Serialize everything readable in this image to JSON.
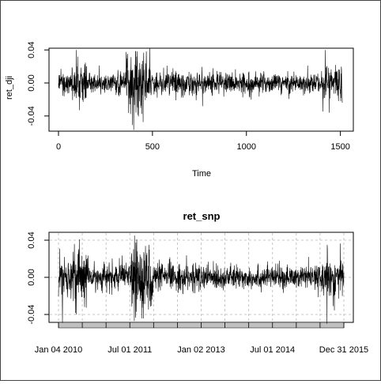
{
  "chart_data": [
    {
      "type": "line",
      "title": "",
      "xlabel": "Time",
      "ylabel": "ret_dji",
      "xlim": [
        0,
        1510
      ],
      "ylim": [
        -0.06,
        0.045
      ],
      "x_ticks": [
        0,
        500,
        1000,
        1500
      ],
      "x_tick_labels": [
        "0",
        "500",
        "1000",
        "1500"
      ],
      "y_ticks": [
        -0.04,
        0.0,
        0.04
      ],
      "y_tick_labels": [
        "-0.04",
        "0.00",
        "0.04"
      ],
      "grid": false,
      "series": [
        {
          "color": "#000000",
          "n_points": 1510,
          "volatility_profile": [
            {
              "x_start": 0,
              "x_end": 70,
              "sd": 0.006
            },
            {
              "x_start": 70,
              "x_end": 150,
              "sd": 0.014
            },
            {
              "x_start": 150,
              "x_end": 360,
              "sd": 0.007
            },
            {
              "x_start": 360,
              "x_end": 470,
              "sd": 0.018
            },
            {
              "x_start": 470,
              "x_end": 900,
              "sd": 0.007
            },
            {
              "x_start": 900,
              "x_end": 1400,
              "sd": 0.006
            },
            {
              "x_start": 1400,
              "x_end": 1510,
              "sd": 0.011
            }
          ],
          "notable_values": [
            {
              "x": 95,
              "y": 0.04
            },
            {
              "x": 112,
              "y": -0.033
            },
            {
              "x": 400,
              "y": -0.057
            },
            {
              "x": 410,
              "y": 0.038
            },
            {
              "x": 485,
              "y": 0.042
            },
            {
              "x": 1420,
              "y": 0.04
            },
            {
              "x": 1440,
              "y": -0.036
            }
          ]
        }
      ]
    },
    {
      "type": "line",
      "title": "ret_snp",
      "xlabel": "",
      "ylabel": "",
      "xlim": [
        "2010-01-04",
        "2015-12-31"
      ],
      "ylim": [
        -0.052,
        0.048
      ],
      "x_tick_labels": [
        "Jan 04 2010",
        "Jul 01 2011",
        "Jan 02 2013",
        "Jul 01 2014",
        "Dec 31 2015"
      ],
      "y_ticks": [
        -0.04,
        0.0,
        0.04
      ],
      "y_tick_labels": [
        "-0.04",
        "0.00",
        "0.04"
      ],
      "grid": true,
      "series": [
        {
          "color": "#000000",
          "n_points": 1510,
          "volatility_profile": [
            {
              "x_start": "2010-01-04",
              "x_end": "2010-04-15",
              "sd": 0.01
            },
            {
              "x_start": "2010-04-15",
              "x_end": "2010-08-15",
              "sd": 0.016
            },
            {
              "x_start": "2010-08-15",
              "x_end": "2011-07-15",
              "sd": 0.007
            },
            {
              "x_start": "2011-07-15",
              "x_end": "2011-12-31",
              "sd": 0.019
            },
            {
              "x_start": "2011-12-31",
              "x_end": "2013-06-01",
              "sd": 0.007
            },
            {
              "x_start": "2013-06-01",
              "x_end": "2015-08-01",
              "sd": 0.006
            },
            {
              "x_start": "2015-08-01",
              "x_end": "2015-12-31",
              "sd": 0.011
            }
          ],
          "notable_values": [
            {
              "x": "2010-02-04",
              "y": -0.049
            },
            {
              "x": "2010-05-06",
              "y": 0.036
            },
            {
              "x": "2010-05-20",
              "y": -0.04
            },
            {
              "x": "2011-08-08",
              "y": -0.047
            },
            {
              "x": "2011-08-10",
              "y": 0.045
            },
            {
              "x": "2015-08-24",
              "y": -0.05
            },
            {
              "x": "2015-08-26",
              "y": 0.035
            }
          ]
        }
      ]
    }
  ]
}
